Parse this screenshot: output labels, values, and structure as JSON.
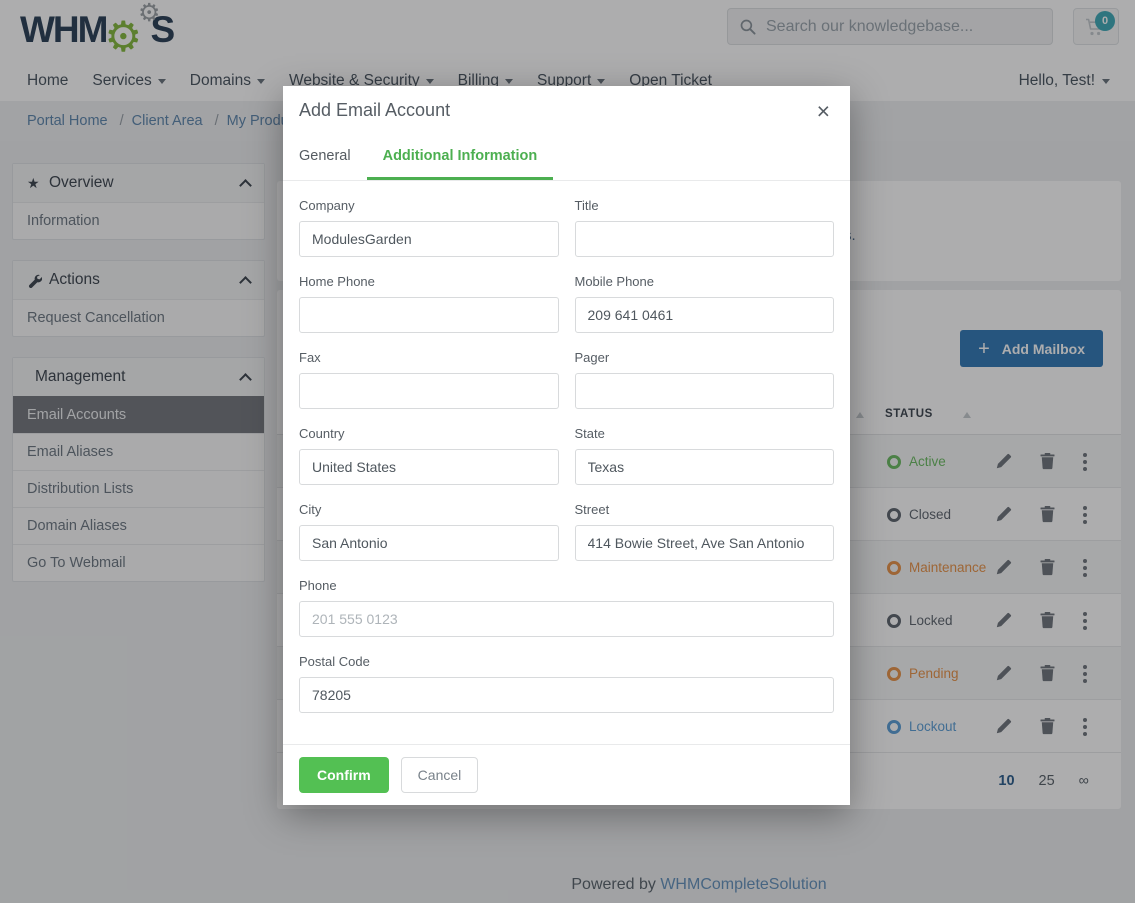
{
  "header": {
    "logo_part1": "WHM",
    "logo_part2": "S",
    "search_placeholder": "Search our knowledgebase...",
    "cart_count": "0"
  },
  "nav": {
    "items": [
      {
        "label": "Home",
        "caret": false
      },
      {
        "label": "Services",
        "caret": true
      },
      {
        "label": "Domains",
        "caret": true
      },
      {
        "label": "Website & Security",
        "caret": true
      },
      {
        "label": "Billing",
        "caret": true
      },
      {
        "label": "Support",
        "caret": true
      },
      {
        "label": "Open Ticket",
        "caret": false
      }
    ],
    "user_label": "Hello, Test!"
  },
  "breadcrumb": {
    "separator": "/",
    "items": [
      "Portal Home",
      "Client Area",
      "My Produc"
    ]
  },
  "sidebar": [
    {
      "title": "Overview",
      "icon": "star-icon",
      "items": [
        {
          "label": "Information",
          "active": false
        }
      ]
    },
    {
      "title": "Actions",
      "icon": "wrench-icon",
      "items": [
        {
          "label": "Request Cancellation",
          "active": false
        }
      ]
    },
    {
      "title": "Management",
      "icon": null,
      "items": [
        {
          "label": "Email Accounts",
          "active": true
        },
        {
          "label": "Email Aliases",
          "active": false
        },
        {
          "label": "Distribution Lists",
          "active": false
        },
        {
          "label": "Domain Aliases",
          "active": false
        },
        {
          "label": "Go To Webmail",
          "active": false
        }
      ]
    }
  ],
  "main": {
    "info_fragment": "s.",
    "add_mailbox_plus": "+",
    "add_mailbox_label": "Add Mailbox",
    "table": {
      "status_header": "STATUS",
      "rows": [
        {
          "status": "Active",
          "color": "#6dbd63"
        },
        {
          "status": "Closed",
          "color": "#5e666f"
        },
        {
          "status": "Maintenance",
          "color": "#e8944a"
        },
        {
          "status": "Locked",
          "color": "#5e666f"
        },
        {
          "status": "Pending",
          "color": "#e8944a"
        },
        {
          "status": "Lockout",
          "color": "#5b9fd6"
        }
      ]
    },
    "pagination": [
      {
        "label": "10",
        "active": true
      },
      {
        "label": "25",
        "active": false
      },
      {
        "label": "∞",
        "active": false
      }
    ]
  },
  "modal": {
    "title": "Add Email Account",
    "close_label": "×",
    "tabs": [
      {
        "label": "General",
        "active": false
      },
      {
        "label": "Additional Information",
        "active": true
      }
    ],
    "fields": [
      {
        "label": "Company",
        "value": "ModulesGarden",
        "placeholder": "",
        "width": "half"
      },
      {
        "label": "Title",
        "value": "",
        "placeholder": "",
        "width": "half"
      },
      {
        "label": "Home Phone",
        "value": "",
        "placeholder": "",
        "width": "half"
      },
      {
        "label": "Mobile Phone",
        "value": "209 641 0461",
        "placeholder": "",
        "width": "half"
      },
      {
        "label": "Fax",
        "value": "",
        "placeholder": "",
        "width": "half"
      },
      {
        "label": "Pager",
        "value": "",
        "placeholder": "",
        "width": "half"
      },
      {
        "label": "Country",
        "value": "United States",
        "placeholder": "",
        "width": "half"
      },
      {
        "label": "State",
        "value": "Texas",
        "placeholder": "",
        "width": "half"
      },
      {
        "label": "City",
        "value": "San Antonio",
        "placeholder": "",
        "width": "half"
      },
      {
        "label": "Street",
        "value": "414 Bowie Street, Ave San Antonio",
        "placeholder": "",
        "width": "half"
      },
      {
        "label": "Phone",
        "value": "",
        "placeholder": "201 555 0123",
        "width": "full"
      },
      {
        "label": "Postal Code",
        "value": "78205",
        "placeholder": "",
        "width": "full"
      }
    ],
    "confirm_label": "Confirm",
    "cancel_label": "Cancel"
  },
  "footer": {
    "powered_by": "Powered by",
    "brand_link": "WHMCompleteSolution"
  },
  "colors": {
    "tab_active_green": "#4caf50",
    "confirm_green": "#53c053",
    "primary_blue": "#337ab7",
    "cart_badge_teal": "#41aab8"
  }
}
